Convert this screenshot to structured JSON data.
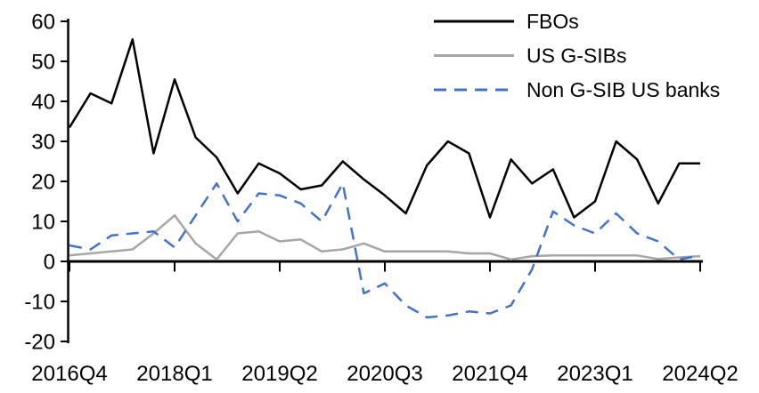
{
  "chart_data": {
    "type": "line",
    "title": "",
    "xlabel": "",
    "ylabel": "",
    "ylim": [
      -20,
      60
    ],
    "y_ticks": [
      60,
      50,
      40,
      30,
      20,
      10,
      0,
      -10,
      -20
    ],
    "x_tick_labels": [
      "2016Q4",
      "2018Q1",
      "2019Q2",
      "2020Q3",
      "2021Q4",
      "2023Q1",
      "2024Q2"
    ],
    "x_tick_indices": [
      0,
      5,
      10,
      15,
      20,
      25,
      30
    ],
    "x_categories": [
      "2016Q4",
      "2017Q1",
      "2017Q2",
      "2017Q3",
      "2017Q4",
      "2018Q1",
      "2018Q2",
      "2018Q3",
      "2018Q4",
      "2019Q1",
      "2019Q2",
      "2019Q3",
      "2019Q4",
      "2020Q1",
      "2020Q2",
      "2020Q3",
      "2020Q4",
      "2021Q1",
      "2021Q2",
      "2021Q3",
      "2021Q4",
      "2022Q1",
      "2022Q2",
      "2022Q3",
      "2022Q4",
      "2023Q1",
      "2023Q2",
      "2023Q3",
      "2023Q4",
      "2024Q1",
      "2024Q2"
    ],
    "grid": false,
    "legend_position": "top-right",
    "axis_color": "#000000",
    "series": [
      {
        "name": "FBOs",
        "color": "#000000",
        "line_style": "solid",
        "values": [
          33.5,
          42,
          39.5,
          55.5,
          27,
          45.5,
          31,
          26,
          17,
          24.5,
          22,
          18,
          19,
          25,
          20.5,
          16.5,
          12,
          24,
          30,
          27,
          11,
          25.5,
          19.5,
          23,
          11,
          15,
          30,
          25.5,
          14.5,
          24.5,
          24.5
        ]
      },
      {
        "name": "US G-SIBs",
        "color": "#A6A6A6",
        "line_style": "solid",
        "values": [
          1.5,
          2,
          2.5,
          3,
          7,
          11.5,
          4.5,
          0.5,
          7,
          7.5,
          5,
          5.5,
          2.5,
          3,
          4.5,
          2.5,
          2.5,
          2.5,
          2.5,
          2,
          2,
          0.5,
          1.3,
          1.5,
          1.5,
          1.5,
          1.5,
          1.5,
          0.6,
          1,
          1.3
        ]
      },
      {
        "name": "Non G-SIB US banks",
        "color": "#4472C4",
        "line_style": "dashed",
        "values": [
          4,
          3,
          6.5,
          7,
          7.5,
          3.5,
          11.5,
          19.5,
          10,
          17,
          16.5,
          14.5,
          10,
          19.5,
          -8,
          -5.5,
          -11,
          -14,
          -13.5,
          -12.5,
          -13,
          -11,
          -2,
          12.5,
          9,
          7,
          12,
          7,
          5,
          0.5,
          1.5
        ]
      }
    ]
  }
}
